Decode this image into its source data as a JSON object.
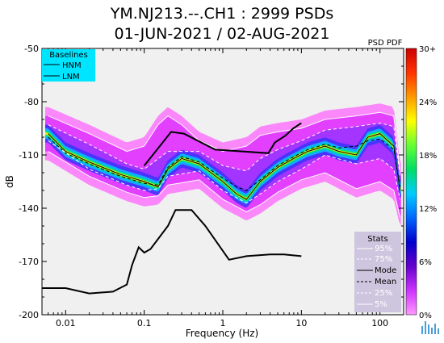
{
  "chart_data": {
    "type": "heatmap",
    "title_line1": "YM.NJ213.--.CH1 : 2999 PSDs",
    "title_line2": "01-JUN-2021 / 02-AUG-2021",
    "xlabel": "Frequency (Hz)",
    "ylabel": "dB",
    "x_scale": "log",
    "xlim": [
      0.005,
      200
    ],
    "ylim": [
      -200,
      -50
    ],
    "x_ticks": [
      {
        "value": 0.01,
        "label": "0.01"
      },
      {
        "value": 0.1,
        "label": "0.1"
      },
      {
        "value": 1,
        "label": "1"
      },
      {
        "value": 10,
        "label": "10"
      },
      {
        "value": 100,
        "label": "100"
      }
    ],
    "y_ticks": [
      {
        "value": -50,
        "label": "-50"
      },
      {
        "value": -80,
        "label": "-80"
      },
      {
        "value": -110,
        "label": "-110"
      },
      {
        "value": -140,
        "label": "-140"
      },
      {
        "value": -170,
        "label": "-170"
      },
      {
        "value": -200,
        "label": "-200"
      }
    ],
    "colorbar": {
      "title": "PSD PDF",
      "labels": [
        "30+",
        "24%",
        "18%",
        "12%",
        "6%",
        "0%"
      ],
      "stops": [
        "#cc0000",
        "#ff3300",
        "#ff9900",
        "#ffff00",
        "#66ff33",
        "#00dd66",
        "#00ccff",
        "#0066ff",
        "#0000cc",
        "#6600cc",
        "#cc33ff",
        "#ff99ff"
      ]
    },
    "baselines": {
      "title": "Baselines",
      "entries": [
        "HNM",
        "LNM"
      ],
      "HNM": {
        "x": [
          0.1,
          0.22,
          0.32,
          0.8,
          3.8,
          4.6,
          6.3,
          7.9,
          10
        ],
        "y": [
          -116,
          -97,
          -98,
          -107,
          -109,
          -103,
          -99,
          -95,
          -92
        ]
      },
      "LNM": {
        "x": [
          0.005,
          0.01,
          0.02,
          0.04,
          0.06,
          0.07,
          0.085,
          0.1,
          0.12,
          0.2,
          0.25,
          0.4,
          0.6,
          1.2,
          2,
          4,
          6,
          10
        ],
        "y": [
          -185,
          -185,
          -188,
          -187,
          -183,
          -172,
          -162,
          -165,
          -163,
          -150,
          -141,
          -141,
          -150,
          -169,
          -167,
          -166,
          -166,
          -167
        ]
      }
    },
    "series": [
      {
        "name": "Mode",
        "style": "solid-black",
        "x": [
          0.006,
          0.01,
          0.02,
          0.05,
          0.1,
          0.15,
          0.2,
          0.3,
          0.5,
          1,
          1.5,
          2,
          3,
          5,
          8,
          12,
          20,
          30,
          50,
          70,
          100,
          150,
          180
        ],
        "y": [
          -98,
          -108,
          -114,
          -121,
          -125,
          -128,
          -118,
          -112,
          -115,
          -125,
          -132,
          -135,
          -125,
          -117,
          -112,
          -108,
          -105,
          -108,
          -110,
          -100,
          -98,
          -105,
          -130
        ]
      },
      {
        "name": "Mean",
        "style": "dashed-black",
        "x": [
          0.006,
          0.01,
          0.02,
          0.05,
          0.1,
          0.15,
          0.2,
          0.3,
          0.5,
          1,
          1.5,
          2,
          3,
          5,
          8,
          12,
          20,
          30,
          50,
          70,
          100,
          150,
          180
        ],
        "y": [
          -100,
          -109,
          -115,
          -122,
          -126,
          -127,
          -117,
          -111,
          -114,
          -123,
          -128,
          -130,
          -124,
          -116,
          -111,
          -107,
          -104,
          -106,
          -105,
          -102,
          -101,
          -107,
          -128
        ]
      },
      {
        "name": "95%",
        "style": "solid-white",
        "x": [
          0.006,
          0.02,
          0.06,
          0.1,
          0.15,
          0.2,
          0.3,
          0.5,
          1,
          2,
          3,
          5,
          10,
          20,
          50,
          100,
          150,
          180
        ],
        "y": [
          -88,
          -98,
          -108,
          -105,
          -93,
          -88,
          -93,
          -102,
          -108,
          -105,
          -99,
          -97,
          -95,
          -90,
          -88,
          -86,
          -88,
          -120
        ]
      },
      {
        "name": "75%",
        "style": "dashed-white",
        "x": [
          0.006,
          0.02,
          0.06,
          0.1,
          0.2,
          0.5,
          1,
          2,
          3,
          5,
          10,
          20,
          50,
          100,
          150,
          180
        ],
        "y": [
          -93,
          -104,
          -115,
          -118,
          -108,
          -108,
          -116,
          -119,
          -112,
          -107,
          -102,
          -96,
          -94,
          -92,
          -94,
          -122
        ]
      },
      {
        "name": "25%",
        "style": "dashed-white",
        "x": [
          0.006,
          0.02,
          0.06,
          0.1,
          0.15,
          0.2,
          0.5,
          1,
          2,
          3,
          5,
          10,
          20,
          50,
          100,
          150,
          180
        ],
        "y": [
          -102,
          -118,
          -127,
          -130,
          -129,
          -122,
          -119,
          -130,
          -137,
          -132,
          -125,
          -118,
          -110,
          -115,
          -112,
          -118,
          -135
        ]
      },
      {
        "name": "5%",
        "style": "solid-white",
        "x": [
          0.006,
          0.02,
          0.06,
          0.1,
          0.15,
          0.2,
          0.5,
          1,
          2,
          3,
          5,
          10,
          20,
          50,
          100,
          150,
          180
        ],
        "y": [
          -108,
          -122,
          -131,
          -134,
          -133,
          -127,
          -124,
          -135,
          -142,
          -138,
          -131,
          -124,
          -120,
          -129,
          -125,
          -130,
          -145
        ]
      }
    ],
    "stats": {
      "title": "Stats",
      "entries": [
        "95%",
        "75%",
        "Mode",
        "Mean",
        "25%",
        "5%"
      ]
    }
  }
}
